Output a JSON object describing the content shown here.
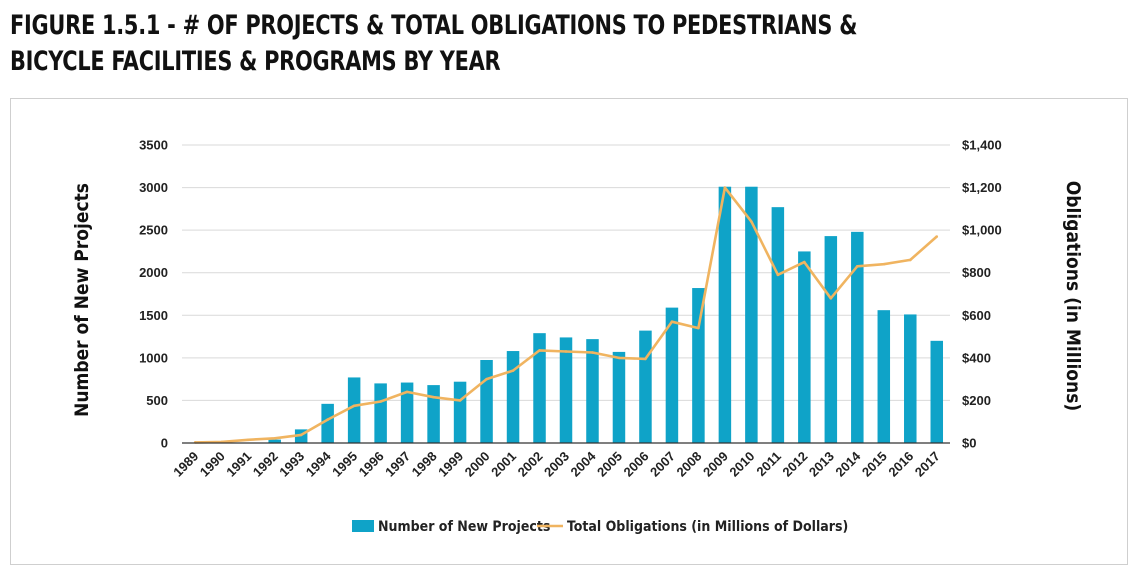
{
  "title": {
    "line1": "FIGURE 1.5.1 - # OF PROJECTS & TOTAL OBLIGATIONS TO PEDESTRIANS &",
    "line2": "BICYCLE FACILITIES & PROGRAMS BY YEAR"
  },
  "colors": {
    "bars": "#0fa3c8",
    "line": "#f0b460",
    "grid": "#d9d9d9",
    "axis": "#333333"
  },
  "chart_data": {
    "type": "bar",
    "categories": [
      "1989",
      "1990",
      "1991",
      "1992",
      "1993",
      "1994",
      "1995",
      "1996",
      "1997",
      "1998",
      "1999",
      "2000",
      "2001",
      "2002",
      "2003",
      "2004",
      "2005",
      "2006",
      "2007",
      "2008",
      "2009",
      "2010",
      "2011",
      "2012",
      "2013",
      "2014",
      "2015",
      "2016",
      "2017"
    ],
    "series": [
      {
        "name": "Number of New Projects",
        "type": "bar",
        "axis": "left",
        "values": [
          0,
          0,
          5,
          40,
          160,
          460,
          770,
          700,
          710,
          680,
          720,
          975,
          1080,
          1290,
          1240,
          1220,
          1070,
          1320,
          1590,
          1820,
          3010,
          3010,
          2770,
          2250,
          2430,
          2480,
          1560,
          1510,
          1200
        ]
      },
      {
        "name": "Total Obligations (in Millions of Dollars)",
        "type": "line",
        "axis": "right",
        "values": [
          3,
          5,
          15,
          22,
          38,
          110,
          175,
          195,
          240,
          215,
          200,
          300,
          340,
          435,
          430,
          425,
          400,
          395,
          570,
          540,
          1200,
          1040,
          790,
          850,
          680,
          830,
          840,
          860,
          970
        ]
      }
    ],
    "ylabel": "Number of New Projects",
    "y2label": "Obligations (in Millions)",
    "ylim": [
      0,
      3500
    ],
    "y2lim": [
      0,
      1400
    ],
    "yticks": [
      "0",
      "500",
      "1000",
      "1500",
      "2000",
      "2500",
      "3000",
      "3500"
    ],
    "y2ticks": [
      "$0",
      "$200",
      "$400",
      "$600",
      "$800",
      "$1,000",
      "$1,200",
      "$1,400"
    ],
    "grid": true,
    "legend": "bottom"
  }
}
